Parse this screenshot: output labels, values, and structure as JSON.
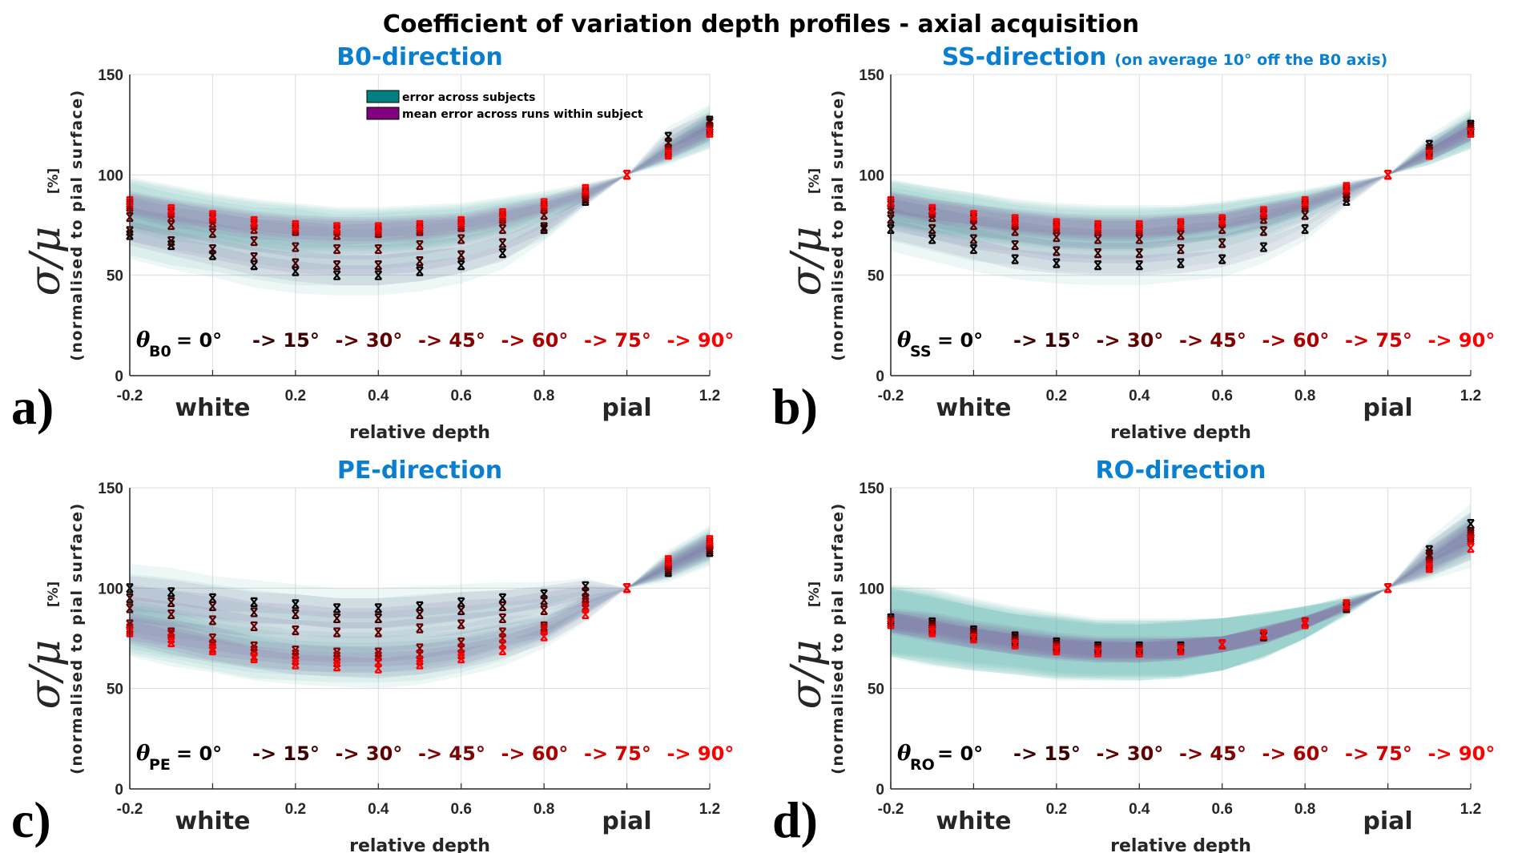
{
  "figure_title": "Coefficient of variation depth profiles - axial acquisition",
  "legend": [
    {
      "label": "error across subjects",
      "color": "#008080"
    },
    {
      "label": "mean error across runs within subject",
      "color": "#800080"
    }
  ],
  "title_color": "#0a7fd0",
  "angle_colors": [
    "#000000",
    "#3b0000",
    "#5e0000",
    "#800000",
    "#a80000",
    "#d20000",
    "#ff0000"
  ],
  "chart_data": [
    {
      "type": "line",
      "panel_letter": "a)",
      "title": "B0-direction",
      "subtitle": "",
      "xlabel": "relative depth",
      "ylabel_symbol": "σ/μ",
      "ylabel_unit": "[%]",
      "ylabel": "(normalised to pial surface)",
      "xlim": [
        -0.2,
        1.2
      ],
      "ylim": [
        0,
        150
      ],
      "xticks": [
        "-0.2",
        "0.2",
        "0.4",
        "0.6",
        "0.8",
        "1.2"
      ],
      "xtick_values": [
        -0.2,
        0.2,
        0.4,
        0.6,
        0.8,
        1.2
      ],
      "yticks": [
        "0",
        "50",
        "100",
        "150"
      ],
      "surface_labels": [
        {
          "label": "white",
          "x": 0
        },
        {
          "label": "pial",
          "x": 1
        }
      ],
      "grid": true,
      "angle_annotation": {
        "theta": "θ",
        "sub": "B0",
        "first": "= 0°",
        "steps": [
          "-> 15°",
          "-> 30°",
          "-> 45°",
          "-> 60°",
          "-> 75°",
          "-> 90°"
        ]
      },
      "x": [
        -0.2,
        -0.1,
        0,
        0.1,
        0.2,
        0.3,
        0.4,
        0.5,
        0.6,
        0.7,
        0.8,
        0.9,
        1.0,
        1.1,
        1.2
      ],
      "subject_error": [
        12,
        12,
        11,
        11,
        11,
        10,
        10,
        10,
        9,
        8,
        6,
        3,
        0,
        5,
        8
      ],
      "run_error": [
        5,
        5,
        5,
        5,
        5,
        5,
        5,
        5,
        4,
        4,
        3,
        2,
        0,
        3,
        4
      ],
      "series": [
        {
          "name": "0°",
          "values": [
            70,
            65,
            60,
            55,
            52,
            50,
            50,
            52,
            55,
            61,
            73,
            87,
            100,
            119,
            127
          ]
        },
        {
          "name": "15°",
          "values": [
            72,
            67,
            63,
            59,
            56,
            55,
            55,
            57,
            60,
            66,
            74,
            88,
            100,
            116,
            126
          ]
        },
        {
          "name": "30°",
          "values": [
            79,
            75,
            71,
            67,
            64,
            63,
            63,
            65,
            68,
            73,
            80,
            89,
            100,
            113,
            124
          ]
        },
        {
          "name": "45°",
          "values": [
            84,
            79,
            76,
            73,
            72,
            70,
            71,
            72,
            74,
            78,
            83,
            90,
            100,
            112,
            123
          ]
        },
        {
          "name": "60°",
          "values": [
            85,
            81,
            78,
            75,
            73,
            72,
            72,
            73,
            75,
            79,
            84,
            91,
            100,
            111,
            122
          ]
        },
        {
          "name": "75°",
          "values": [
            86,
            82,
            79,
            76,
            74,
            73,
            73,
            74,
            76,
            80,
            85,
            92,
            100,
            111,
            121
          ]
        },
        {
          "name": "90°",
          "values": [
            87,
            83,
            80,
            77,
            75,
            74,
            74,
            75,
            77,
            81,
            86,
            93,
            100,
            110,
            121
          ]
        }
      ]
    },
    {
      "type": "line",
      "panel_letter": "b)",
      "title": "SS-direction",
      "subtitle": "(on average 10° off the B0 axis)",
      "xlabel": "relative depth",
      "ylabel_symbol": "σ/μ",
      "ylabel_unit": "[%]",
      "ylabel": "(normalised to pial surface)",
      "xlim": [
        -0.2,
        1.2
      ],
      "ylim": [
        0,
        150
      ],
      "xticks": [
        "-0.2",
        "0.2",
        "0.4",
        "0.6",
        "0.8",
        "1.2"
      ],
      "xtick_values": [
        -0.2,
        0.2,
        0.4,
        0.6,
        0.8,
        1.2
      ],
      "yticks": [
        "0",
        "50",
        "100",
        "150"
      ],
      "surface_labels": [
        {
          "label": "white",
          "x": 0
        },
        {
          "label": "pial",
          "x": 1
        }
      ],
      "grid": true,
      "angle_annotation": {
        "theta": "θ",
        "sub": "SS",
        "first": "= 0°",
        "steps": [
          "-> 15°",
          "-> 30°",
          "-> 45°",
          "-> 60°",
          "-> 75°",
          "-> 90°"
        ]
      },
      "x": [
        -0.2,
        -0.1,
        0,
        0.1,
        0.2,
        0.3,
        0.4,
        0.5,
        0.6,
        0.7,
        0.8,
        0.9,
        1.0,
        1.1,
        1.2
      ],
      "subject_error": [
        11,
        11,
        11,
        10,
        10,
        10,
        10,
        9,
        9,
        8,
        6,
        3,
        0,
        5,
        8
      ],
      "run_error": [
        5,
        5,
        5,
        5,
        5,
        5,
        5,
        5,
        4,
        4,
        3,
        2,
        0,
        3,
        4
      ],
      "series": [
        {
          "name": "0°",
          "values": [
            73,
            68,
            63,
            58,
            56,
            55,
            55,
            56,
            58,
            64,
            73,
            87,
            100,
            115,
            125
          ]
        },
        {
          "name": "15°",
          "values": [
            78,
            73,
            68,
            65,
            62,
            61,
            61,
            63,
            66,
            72,
            80,
            89,
            100,
            113,
            124
          ]
        },
        {
          "name": "30°",
          "values": [
            83,
            79,
            75,
            72,
            69,
            68,
            68,
            70,
            73,
            78,
            84,
            91,
            100,
            112,
            123
          ]
        },
        {
          "name": "45°",
          "values": [
            85,
            81,
            78,
            75,
            73,
            72,
            72,
            74,
            76,
            80,
            85,
            92,
            100,
            111,
            122
          ]
        },
        {
          "name": "60°",
          "values": [
            86,
            82,
            79,
            76,
            74,
            73,
            73,
            75,
            77,
            81,
            86,
            93,
            100,
            110,
            121
          ]
        },
        {
          "name": "75°",
          "values": [
            86,
            83,
            80,
            77,
            75,
            74,
            74,
            75,
            77,
            81,
            86,
            93,
            100,
            110,
            121
          ]
        },
        {
          "name": "90°",
          "values": [
            87,
            83,
            80,
            78,
            76,
            75,
            75,
            76,
            78,
            82,
            87,
            94,
            100,
            110,
            121
          ]
        }
      ]
    },
    {
      "type": "line",
      "panel_letter": "c)",
      "title": "PE-direction",
      "subtitle": "",
      "xlabel": "relative depth",
      "ylabel_symbol": "σ/μ",
      "ylabel_unit": "[%]",
      "ylabel": "(normalised to pial surface)",
      "xlim": [
        -0.2,
        1.2
      ],
      "ylim": [
        0,
        150
      ],
      "xticks": [
        "-0.2",
        "0.2",
        "0.4",
        "0.6",
        "0.8",
        "1.2"
      ],
      "xtick_values": [
        -0.2,
        0.2,
        0.4,
        0.6,
        0.8,
        1.2
      ],
      "yticks": [
        "0",
        "50",
        "100",
        "150"
      ],
      "surface_labels": [
        {
          "label": "white",
          "x": 0
        },
        {
          "label": "pial",
          "x": 1
        }
      ],
      "grid": true,
      "angle_annotation": {
        "theta": "θ",
        "sub": "PE",
        "first": "= 0°",
        "steps": [
          "-> 15°",
          "-> 30°",
          "-> 45°",
          "-> 60°",
          "-> 75°",
          "-> 90°"
        ]
      },
      "x": [
        -0.2,
        -0.1,
        0,
        0.1,
        0.2,
        0.3,
        0.4,
        0.5,
        0.6,
        0.7,
        0.8,
        0.9,
        1.0,
        1.1,
        1.2
      ],
      "subject_error": [
        12,
        12,
        11,
        11,
        10,
        10,
        10,
        10,
        9,
        8,
        6,
        4,
        0,
        5,
        7
      ],
      "run_error": [
        6,
        6,
        6,
        5,
        5,
        5,
        5,
        5,
        5,
        4,
        4,
        3,
        0,
        3,
        4
      ],
      "series": [
        {
          "name": "0°",
          "values": [
            100,
            98,
            95,
            93,
            92,
            90,
            90,
            91,
            93,
            95,
            97,
            101,
            100,
            108,
            118
          ]
        },
        {
          "name": "15°",
          "values": [
            95,
            93,
            91,
            88,
            87,
            85,
            85,
            87,
            89,
            91,
            94,
            98,
            100,
            109,
            119
          ]
        },
        {
          "name": "30°",
          "values": [
            90,
            87,
            84,
            81,
            79,
            78,
            78,
            80,
            82,
            85,
            89,
            95,
            100,
            110,
            120
          ]
        },
        {
          "name": "45°",
          "values": [
            82,
            78,
            75,
            71,
            69,
            68,
            68,
            70,
            73,
            78,
            81,
            93,
            100,
            111,
            121
          ]
        },
        {
          "name": "60°",
          "values": [
            80,
            77,
            72,
            69,
            67,
            66,
            66,
            67,
            70,
            75,
            80,
            91,
            100,
            112,
            122
          ]
        },
        {
          "name": "75°",
          "values": [
            79,
            75,
            70,
            66,
            64,
            63,
            63,
            64,
            67,
            72,
            79,
            90,
            100,
            113,
            123
          ]
        },
        {
          "name": "90°",
          "values": [
            78,
            73,
            69,
            65,
            62,
            61,
            60,
            62,
            65,
            69,
            76,
            87,
            100,
            114,
            124
          ]
        }
      ]
    },
    {
      "type": "line",
      "panel_letter": "d)",
      "title": "RO-direction",
      "subtitle": "",
      "xlabel": "relative depth",
      "ylabel_symbol": "σ/μ",
      "ylabel_unit": "[%]",
      "ylabel": "(normalised to pial surface)",
      "xlim": [
        -0.2,
        1.2
      ],
      "ylim": [
        0,
        150
      ],
      "xticks": [
        "-0.2",
        "0.2",
        "0.4",
        "0.6",
        "0.8",
        "1.2"
      ],
      "xtick_values": [
        -0.2,
        0.2,
        0.4,
        0.6,
        0.8,
        1.2
      ],
      "yticks": [
        "0",
        "50",
        "100",
        "150"
      ],
      "surface_labels": [
        {
          "label": "white",
          "x": 0
        },
        {
          "label": "pial",
          "x": 1
        }
      ],
      "grid": true,
      "angle_annotation": {
        "theta": "θ",
        "sub": "RO",
        "first": "= 0°",
        "steps": [
          "-> 15°",
          "-> 30°",
          "-> 45°",
          "-> 60°",
          "-> 75°",
          "-> 90°"
        ]
      },
      "x": [
        -0.2,
        -0.1,
        0,
        0.1,
        0.2,
        0.3,
        0.4,
        0.5,
        0.6,
        0.7,
        0.8,
        0.9,
        1.0,
        1.1,
        1.2
      ],
      "subject_error": [
        17,
        17,
        16,
        15,
        15,
        14,
        14,
        14,
        13,
        11,
        8,
        4,
        0,
        6,
        10
      ],
      "run_error": [
        5,
        5,
        5,
        5,
        5,
        5,
        5,
        5,
        4,
        4,
        3,
        2,
        0,
        4,
        6
      ],
      "series": [
        {
          "name": "0°",
          "values": [
            85,
            83,
            79,
            76,
            73,
            71,
            71,
            71,
            72,
            76,
            83,
            90,
            100,
            119,
            132
          ]
        },
        {
          "name": "15°",
          "values": [
            84,
            82,
            78,
            75,
            72,
            70,
            70,
            70,
            72,
            76,
            83,
            90,
            100,
            117,
            128
          ]
        },
        {
          "name": "30°",
          "values": [
            84,
            81,
            77,
            74,
            71,
            70,
            70,
            70,
            72,
            76,
            83,
            91,
            100,
            116,
            127
          ]
        },
        {
          "name": "45°",
          "values": [
            83,
            80,
            76,
            73,
            71,
            69,
            69,
            70,
            72,
            77,
            83,
            91,
            100,
            113,
            126
          ]
        },
        {
          "name": "60°",
          "values": [
            83,
            79,
            75,
            72,
            70,
            69,
            68,
            70,
            72,
            77,
            83,
            91,
            100,
            112,
            125
          ]
        },
        {
          "name": "75°",
          "values": [
            83,
            79,
            75,
            72,
            70,
            68,
            68,
            69,
            72,
            77,
            83,
            92,
            100,
            111,
            124
          ]
        },
        {
          "name": "90°",
          "values": [
            82,
            78,
            75,
            72,
            69,
            68,
            68,
            69,
            72,
            77,
            82,
            92,
            100,
            110,
            120
          ]
        }
      ]
    }
  ]
}
